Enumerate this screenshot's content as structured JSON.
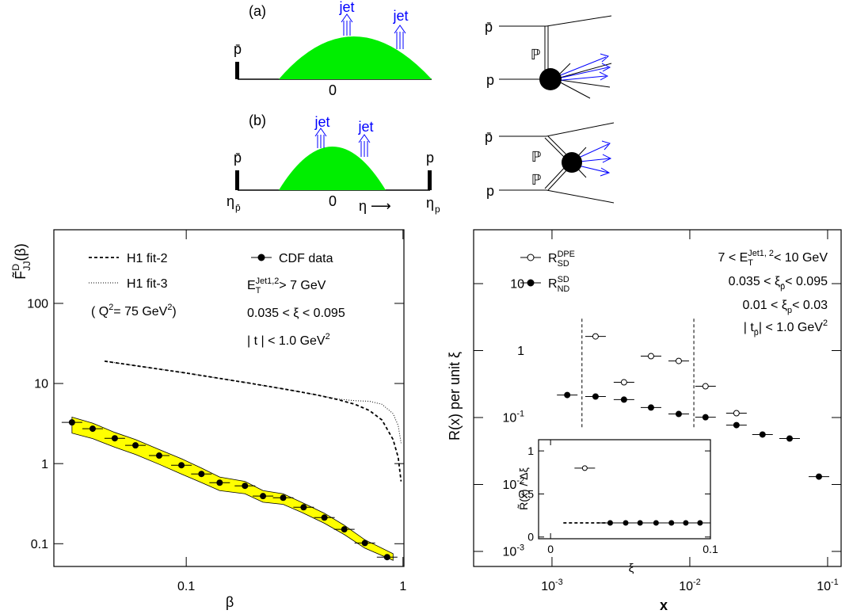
{
  "diagrams": {
    "a": {
      "label": "(a)",
      "jet_left": "jet",
      "jet_right": "jet",
      "beam_left": "p̄",
      "center": "0",
      "feyn_top": "p̄",
      "feyn_pomeron": "ℙ",
      "feyn_bottom": "p"
    },
    "b": {
      "label": "(b)",
      "jet_left": "jet",
      "jet_right": "jet",
      "beam_left": "p̄",
      "beam_right": "p",
      "eta_left": "η",
      "eta_left_sub": "p̄",
      "center": "0",
      "eta_axis": "η ⟶",
      "eta_right": "η",
      "eta_right_sub": "p",
      "feyn_top": "p̄",
      "feyn_pomeron_top": "ℙ",
      "feyn_pomeron_bottom": "ℙ",
      "feyn_bottom": "p"
    }
  },
  "chart_data": [
    {
      "type": "scatter",
      "xlog": true,
      "ylog": true,
      "x_label": "β",
      "y_label": [
        "F̃",
        {
          "sup": "D",
          "sub": "JJ"
        },
        " (β)"
      ],
      "xlim": [
        0.0245,
        1.01
      ],
      "ylim": [
        0.052,
        830
      ],
      "xticks": [
        0.1,
        1
      ],
      "yticks": [
        0.1,
        1,
        10,
        100
      ],
      "series": [
        {
          "kind": "band",
          "color": "#ffff00",
          "x": [
            0.0297,
            0.037,
            0.0468,
            0.0583,
            0.075,
            0.095,
            0.1175,
            0.1426,
            0.1866,
            0.226,
            0.28,
            0.348,
            0.434,
            0.536,
            0.667,
            0.9
          ],
          "upper": [
            3.8,
            3.2,
            2.45,
            2.0,
            1.5,
            1.15,
            0.88,
            0.68,
            0.6,
            0.46,
            0.42,
            0.32,
            0.24,
            0.17,
            0.112,
            0.075
          ],
          "lower": [
            2.4,
            2.05,
            1.6,
            1.3,
            0.98,
            0.74,
            0.58,
            0.46,
            0.42,
            0.33,
            0.31,
            0.24,
            0.18,
            0.13,
            0.088,
            0.062
          ]
        },
        {
          "name": "CDF data",
          "kind": "points",
          "marker": "filled",
          "color": "#000000",
          "x": [
            0.0297,
            0.037,
            0.0468,
            0.0583,
            0.075,
            0.095,
            0.1175,
            0.1426,
            0.1866,
            0.226,
            0.28,
            0.348,
            0.434,
            0.536,
            0.667,
            0.845
          ],
          "values": [
            3.27,
            2.73,
            2.07,
            1.69,
            1.26,
            0.955,
            0.743,
            0.578,
            0.528,
            0.393,
            0.375,
            0.285,
            0.212,
            0.151,
            0.102,
            0.068
          ]
        },
        {
          "name": "H1 fit-2",
          "kind": "line",
          "dash": "dashed",
          "color": "#000000",
          "x": [
            0.042,
            0.06,
            0.1,
            0.2,
            0.3,
            0.4,
            0.5,
            0.6,
            0.7,
            0.8,
            0.9,
            0.95,
            0.98
          ],
          "values": [
            19,
            16.5,
            13.5,
            10,
            8.3,
            7.2,
            6.3,
            5.5,
            4.6,
            3.5,
            2,
            1.2,
            0.6
          ]
        },
        {
          "name": "H1 fit-3",
          "kind": "line",
          "dash": "dotted",
          "color": "#000000",
          "x": [
            0.042,
            0.06,
            0.1,
            0.2,
            0.3,
            0.4,
            0.5,
            0.6,
            0.7,
            0.8,
            0.9,
            0.95,
            0.98
          ],
          "values": [
            19,
            16.5,
            13.5,
            10,
            8.3,
            7.2,
            6.4,
            6.1,
            6.0,
            5.5,
            4.2,
            3,
            1.8
          ]
        }
      ],
      "annotations": [
        [
          "( Q",
          {
            "sup": "2"
          },
          "= 75 GeV",
          {
            "sup": "2"
          },
          " )"
        ],
        [
          "E",
          {
            "sub": "T",
            "sup": "Jet1,2"
          },
          " > 7 GeV"
        ],
        "0.035 < ξ < 0.095",
        [
          "| t | < 1.0 GeV",
          {
            "sup": "2"
          }
        ]
      ]
    },
    {
      "type": "scatter",
      "xlog": true,
      "ylog": true,
      "x_label": "x",
      "y_label": "R(x) per unit ξ",
      "xlim": [
        0.00027,
        0.1253
      ],
      "ylim": [
        0.000596,
        63.8
      ],
      "xticks": [
        {
          "value": 0.001,
          "label": "10",
          "exponent": "-3"
        },
        {
          "value": 0.01,
          "label": "10",
          "exponent": "-2"
        },
        {
          "value": 0.1,
          "label": "10",
          "exponent": "-1"
        }
      ],
      "yticks": [
        {
          "value": 0.001,
          "label": "10",
          "exponent": "-3"
        },
        {
          "value": 0.01,
          "label": "10",
          "exponent": "-2"
        },
        {
          "value": 0.1,
          "label": "10",
          "exponent": "-1"
        },
        1,
        10
      ],
      "vlines": [
        0.00165,
        0.0107
      ],
      "vline_span": [
        3,
        0.07
      ],
      "series": [
        {
          "name": [
            "R",
            {
              "sup": "DPE",
              "sub": "SD"
            }
          ],
          "kind": "points",
          "marker": "open",
          "color": "#000000",
          "x": [
            0.00207,
            0.00333,
            0.00523,
            0.00831,
            0.013,
            0.0218
          ],
          "values": [
            1.63,
            0.336,
            0.826,
            0.7,
            0.293,
            0.116
          ]
        },
        {
          "name": [
            "R",
            {
              "sup": "SD",
              "sub": "ND"
            }
          ],
          "kind": "points",
          "marker": "filled",
          "color": "#000000",
          "x": [
            0.00129,
            0.00207,
            0.00333,
            0.00523,
            0.00831,
            0.013,
            0.0218,
            0.0337,
            0.053,
            0.0865
          ],
          "values": [
            0.217,
            0.206,
            0.185,
            0.141,
            0.113,
            0.101,
            0.077,
            0.0557,
            0.0486,
            0.0131
          ]
        }
      ],
      "annotations": [
        [
          "7 < E",
          {
            "sub": "T",
            "sup": "Jet1, 2"
          },
          " < 10 GeV"
        ],
        [
          "0.035 < ξ",
          {
            "sub": "p̄"
          },
          " < 0.095"
        ],
        [
          "0.01 < ξ",
          {
            "sub": "p"
          },
          " < 0.03"
        ],
        [
          "| t",
          {
            "sub": "p̄"
          },
          " | < 1.0 GeV",
          {
            "sup": "2"
          }
        ]
      ]
    },
    {
      "type": "scatter",
      "x_label": "ξ",
      "y_label": "R̃(x) / Δξ",
      "xlim": [
        -0.0075,
        0.1
      ],
      "ylim": [
        -0.02,
        1.13
      ],
      "xticks": [
        0,
        0.1
      ],
      "yticks": [
        0,
        0.5,
        1
      ],
      "series": [
        {
          "kind": "line",
          "dash": "dashed",
          "color": "#000000",
          "x": [
            0.008,
            0.035
          ],
          "values": [
            0.164,
            0.164
          ]
        },
        {
          "kind": "points",
          "marker": "open",
          "color": "#000000",
          "x": [
            0.0214
          ],
          "values": [
            0.8
          ]
        },
        {
          "kind": "points",
          "marker": "filled",
          "color": "#000000",
          "x": [
            0.0373,
            0.047,
            0.056,
            0.066,
            0.0756,
            0.0846,
            0.0935
          ],
          "values": [
            0.164,
            0.164,
            0.164,
            0.164,
            0.164,
            0.164,
            0.164
          ]
        }
      ]
    }
  ]
}
